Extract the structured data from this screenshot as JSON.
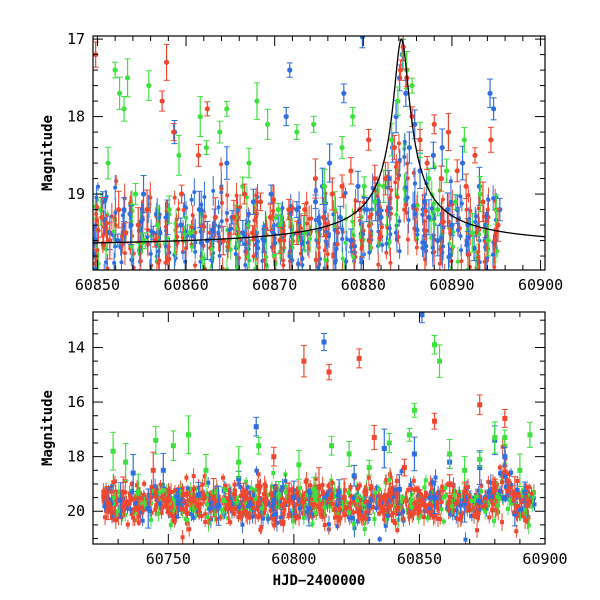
{
  "chart_data": [
    {
      "type": "scatter",
      "panel": "top",
      "title": "",
      "xlabel": "",
      "ylabel": "Magnitude",
      "xlim": [
        60849.5,
        60900.5
      ],
      "ylim": [
        19.98,
        16.96
      ],
      "y_inverted": true,
      "xticks": [
        60850,
        60860,
        60870,
        60880,
        60890,
        60900
      ],
      "xtick_labels": [
        "60850",
        "60860",
        "60870",
        "60880",
        "60890",
        "60900"
      ],
      "yticks": [
        17,
        18,
        19
      ],
      "ytick_labels": [
        "17",
        "18",
        "19"
      ],
      "grid": false,
      "legend": "none",
      "series": [
        {
          "color": "#2e6fe0",
          "points": [
            [
              60850.6,
              19.1
            ],
            [
              60851.4,
              19.5
            ],
            [
              60852.3,
              19.6
            ],
            [
              60853.0,
              19.2
            ],
            [
              60853.8,
              19.4
            ],
            [
              60855.2,
              19.0
            ],
            [
              60856.3,
              19.5
            ],
            [
              60857.9,
              19.3
            ],
            [
              60858.7,
              18.2
            ],
            [
              60859.4,
              19.4
            ],
            [
              60861.5,
              19.2
            ],
            [
              60862.4,
              19.6
            ],
            [
              60863.2,
              19.4
            ],
            [
              60864.6,
              18.6
            ],
            [
              60865.2,
              19.3
            ],
            [
              60866.4,
              19.5
            ],
            [
              60867.6,
              19.1
            ],
            [
              60868.8,
              19.6
            ],
            [
              60869.6,
              19.0
            ],
            [
              60870.4,
              19.4
            ],
            [
              60871.3,
              18.0
            ],
            [
              60871.7,
              17.4
            ],
            [
              60872.5,
              19.2
            ],
            [
              60873.3,
              19.5
            ],
            [
              60874.6,
              19.1
            ],
            [
              60875.4,
              18.9
            ],
            [
              60876.2,
              18.6
            ],
            [
              60877.4,
              19.3
            ],
            [
              60877.8,
              17.7
            ],
            [
              60878.6,
              19.6
            ],
            [
              60879.4,
              18.9
            ],
            [
              60879.9,
              16.97
            ],
            [
              60880.4,
              19.2
            ],
            [
              60881.4,
              19.1
            ],
            [
              60882.0,
              19.3
            ],
            [
              60882.9,
              18.8
            ],
            [
              60883.3,
              18.4
            ],
            [
              60883.7,
              18.0
            ],
            [
              60884.1,
              17.5
            ],
            [
              60884.4,
              17.2
            ],
            [
              60884.8,
              17.7
            ],
            [
              60885.2,
              18.4
            ],
            [
              60885.8,
              18.1
            ],
            [
              60886.4,
              18.7
            ],
            [
              60886.9,
              19.1
            ],
            [
              60887.4,
              19.3
            ],
            [
              60887.9,
              18.5
            ],
            [
              60888.4,
              19.6
            ],
            [
              60888.9,
              18.4
            ],
            [
              60889.5,
              19.2
            ],
            [
              60890.0,
              19.4
            ],
            [
              60890.6,
              19.2
            ],
            [
              60891.2,
              18.6
            ],
            [
              60891.8,
              19.4
            ],
            [
              60892.5,
              19.7
            ],
            [
              60893.1,
              18.9
            ],
            [
              60893.8,
              19.4
            ],
            [
              60894.3,
              17.7
            ],
            [
              60894.7,
              17.9
            ],
            [
              60895.4,
              19.2
            ]
          ]
        },
        {
          "color": "#3ee03e",
          "points": [
            [
              60850.4,
              19.2
            ],
            [
              60851.2,
              18.6
            ],
            [
              60852.0,
              17.4
            ],
            [
              60852.5,
              17.7
            ],
            [
              60853.0,
              17.9
            ],
            [
              60853.4,
              17.5
            ],
            [
              60854.3,
              19.0
            ],
            [
              60855.4,
              19.6
            ],
            [
              60855.8,
              17.6
            ],
            [
              60856.8,
              19.4
            ],
            [
              60858.1,
              19.2
            ],
            [
              60859.2,
              18.5
            ],
            [
              60860.4,
              19.5
            ],
            [
              60861.6,
              18.0
            ],
            [
              60862.3,
              18.4
            ],
            [
              60863.8,
              18.2
            ],
            [
              60864.6,
              17.9
            ],
            [
              60865.6,
              19.3
            ],
            [
              60866.4,
              18.9
            ],
            [
              60867.1,
              18.6
            ],
            [
              60868.0,
              17.8
            ],
            [
              60869.2,
              18.1
            ],
            [
              60870.4,
              19.2
            ],
            [
              60870.6,
              19.4
            ],
            [
              60872.5,
              18.2
            ],
            [
              60873.4,
              19.5
            ],
            [
              60874.4,
              18.1
            ],
            [
              60875.6,
              18.9
            ],
            [
              60876.8,
              19.2
            ],
            [
              60877.6,
              18.4
            ],
            [
              60878.8,
              18.0
            ],
            [
              60880.1,
              18.9
            ],
            [
              60881.3,
              19.1
            ],
            [
              60882.3,
              18.9
            ],
            [
              60883.2,
              18.3
            ],
            [
              60883.9,
              17.8
            ],
            [
              60884.5,
              17.2
            ],
            [
              60884.9,
              17.4
            ],
            [
              60885.5,
              17.6
            ],
            [
              60886.4,
              18.3
            ],
            [
              60887.4,
              18.8
            ],
            [
              60888.4,
              19.2
            ],
            [
              60889.4,
              18.7
            ],
            [
              60890.4,
              19.1
            ],
            [
              60891.4,
              18.3
            ],
            [
              60892.3,
              19.5
            ],
            [
              60893.2,
              19.0
            ],
            [
              60894.1,
              19.6
            ],
            [
              60895.0,
              19.2
            ]
          ]
        },
        {
          "color": "#f04830",
          "points": [
            [
              60849.8,
              17.2
            ],
            [
              60850.5,
              19.3
            ],
            [
              60851.4,
              19.6
            ],
            [
              60852.4,
              19.2
            ],
            [
              60853.2,
              19.5
            ],
            [
              60854.6,
              19.4
            ],
            [
              60855.6,
              19.2
            ],
            [
              60856.5,
              19.6
            ],
            [
              60857.3,
              17.8
            ],
            [
              60857.8,
              17.3
            ],
            [
              60858.6,
              18.2
            ],
            [
              60859.5,
              19.0
            ],
            [
              60861.4,
              18.5
            ],
            [
              60862.4,
              17.9
            ],
            [
              60863.3,
              19.3
            ],
            [
              60864.2,
              19.6
            ],
            [
              60865.4,
              19.3
            ],
            [
              60866.6,
              19.0
            ],
            [
              60867.5,
              19.5
            ],
            [
              60868.4,
              19.1
            ],
            [
              60869.5,
              19.3
            ],
            [
              60870.6,
              19.6
            ],
            [
              60871.6,
              19.2
            ],
            [
              60872.5,
              19.5
            ],
            [
              60873.4,
              19.2
            ],
            [
              60874.6,
              18.8
            ],
            [
              60875.5,
              19.3
            ],
            [
              60876.5,
              19.0
            ],
            [
              60877.6,
              18.9
            ],
            [
              60878.6,
              18.7
            ],
            [
              60879.6,
              19.2
            ],
            [
              60880.6,
              18.3
            ],
            [
              60881.3,
              18.8
            ],
            [
              60882.5,
              18.8
            ],
            [
              60883.5,
              18.4
            ],
            [
              60884.2,
              17.4
            ],
            [
              60884.5,
              17.1
            ],
            [
              60884.9,
              17.5
            ],
            [
              60885.5,
              18.0
            ],
            [
              60886.4,
              18.3
            ],
            [
              60887.2,
              18.6
            ],
            [
              60888.0,
              18.1
            ],
            [
              60888.8,
              18.8
            ],
            [
              60889.6,
              18.2
            ],
            [
              60890.6,
              18.7
            ],
            [
              60891.6,
              18.9
            ],
            [
              60892.6,
              18.5
            ],
            [
              60893.5,
              19.1
            ],
            [
              60894.4,
              18.3
            ],
            [
              60895.2,
              19.4
            ]
          ]
        }
      ],
      "model_curve": {
        "color": "#000000",
        "peak_x": 60884.3,
        "peak_y": 17.0,
        "baseline_y": 19.7
      }
    },
    {
      "type": "scatter",
      "panel": "bottom",
      "title": "",
      "xlabel": "HJD−2400000",
      "ylabel": "Magnitude",
      "xlim": [
        60720,
        60900
      ],
      "ylim": [
        21.2,
        12.7
      ],
      "y_inverted": true,
      "xticks": [
        60750,
        60800,
        60850,
        60900
      ],
      "xtick_labels": [
        "60750",
        "60800",
        "60850",
        "60900"
      ],
      "yticks": [
        14,
        16,
        18,
        20
      ],
      "ytick_labels": [
        "14",
        "16",
        "18",
        "20"
      ],
      "grid": false,
      "legend": "none",
      "series": [
        {
          "color": "#2e6fe0",
          "points": [
            [
              60731,
              19.6
            ],
            [
              60736,
              18.6
            ],
            [
              60742,
              19.9
            ],
            [
              60748,
              18.5
            ],
            [
              60754,
              19.7
            ],
            [
              60762,
              19.4
            ],
            [
              60770,
              19.8
            ],
            [
              60778,
              18.8
            ],
            [
              60785,
              16.9
            ],
            [
              60792,
              19.6
            ],
            [
              60800,
              19.5
            ],
            [
              60806,
              19.9
            ],
            [
              60812,
              13.8
            ],
            [
              60818,
              19.3
            ],
            [
              60824,
              18.7
            ],
            [
              60830,
              19.8
            ],
            [
              60836,
              17.7
            ],
            [
              60842,
              19.2
            ],
            [
              60848,
              17.9
            ],
            [
              60851,
              12.8
            ],
            [
              60856,
              19.5
            ],
            [
              60862,
              18.2
            ],
            [
              60868,
              19.7
            ],
            [
              60874,
              18.4
            ],
            [
              60880,
              17.4
            ],
            [
              60884,
              18.0
            ],
            [
              60888,
              20.1
            ],
            [
              60892,
              19.3
            ]
          ]
        },
        {
          "color": "#3ee03e",
          "points": [
            [
              60728,
              17.8
            ],
            [
              60733,
              18.2
            ],
            [
              60738,
              19.3
            ],
            [
              60745,
              17.4
            ],
            [
              60752,
              17.6
            ],
            [
              60758,
              17.2
            ],
            [
              60765,
              18.5
            ],
            [
              60772,
              19.6
            ],
            [
              60778,
              18.2
            ],
            [
              60786,
              17.6
            ],
            [
              60794,
              19.4
            ],
            [
              60802,
              18.3
            ],
            [
              60808,
              19.2
            ],
            [
              60815,
              17.6
            ],
            [
              60822,
              17.9
            ],
            [
              60830,
              18.4
            ],
            [
              60838,
              17.5
            ],
            [
              60846,
              17.2
            ],
            [
              60848,
              16.3
            ],
            [
              60856,
              13.9
            ],
            [
              60858,
              14.5
            ],
            [
              60862,
              17.9
            ],
            [
              60868,
              18.5
            ],
            [
              60874,
              18.1
            ],
            [
              60880,
              17.3
            ],
            [
              60884,
              17.3
            ],
            [
              60890,
              18.5
            ],
            [
              60894,
              17.2
            ]
          ]
        },
        {
          "color": "#f04830",
          "points": [
            [
              60726,
              19.7
            ],
            [
              60732,
              19.3
            ],
            [
              60738,
              19.9
            ],
            [
              60744,
              18.5
            ],
            [
              60750,
              19.6
            ],
            [
              60756,
              19.4
            ],
            [
              60762,
              19.8
            ],
            [
              60768,
              19.5
            ],
            [
              60774,
              19.9
            ],
            [
              60780,
              19.3
            ],
            [
              60786,
              19.7
            ],
            [
              60792,
              18.0
            ],
            [
              60798,
              19.6
            ],
            [
              60804,
              14.5
            ],
            [
              60810,
              19.1
            ],
            [
              60814,
              14.9
            ],
            [
              60820,
              19.5
            ],
            [
              60826,
              14.4
            ],
            [
              60832,
              17.3
            ],
            [
              60838,
              19.4
            ],
            [
              60844,
              18.4
            ],
            [
              60850,
              19.6
            ],
            [
              60856,
              16.7
            ],
            [
              60862,
              19.0
            ],
            [
              60868,
              19.3
            ],
            [
              60874,
              16.1
            ],
            [
              60880,
              19.2
            ],
            [
              60884,
              16.6
            ],
            [
              60888,
              19.4
            ],
            [
              60893,
              19.8
            ]
          ]
        }
      ],
      "band": {
        "x_start": 60724,
        "x_end": 60896,
        "y_center": 19.7,
        "spread": 0.35
      }
    }
  ]
}
